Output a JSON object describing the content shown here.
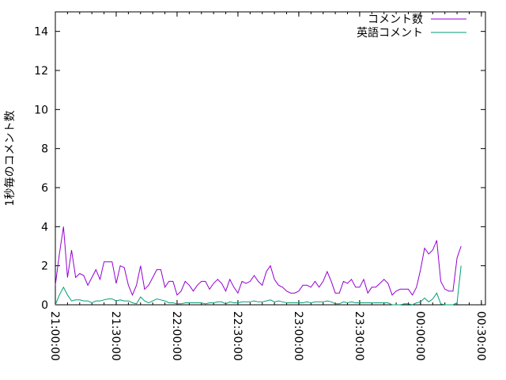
{
  "chart_data": {
    "type": "line",
    "title": "",
    "xlabel": "",
    "ylabel": "1秒毎のコメント数",
    "ylim": [
      0,
      15
    ],
    "yticks": [
      "0",
      "2",
      "4",
      "6",
      "8",
      "10",
      "12",
      "14"
    ],
    "xlim": [
      "21:00",
      "00:32"
    ],
    "xticks": [
      "21:00:00",
      "21:30:00",
      "22:00:00",
      "22:30:00",
      "23:00:00",
      "23:30:00",
      "00:00:00",
      "00:30:00"
    ],
    "grid": false,
    "legend_position": "top-right",
    "x": [
      "21:00",
      "21:02",
      "21:04",
      "21:06",
      "21:08",
      "21:10",
      "21:12",
      "21:14",
      "21:16",
      "21:18",
      "21:20",
      "21:22",
      "21:24",
      "21:26",
      "21:28",
      "21:30",
      "21:32",
      "21:34",
      "21:36",
      "21:38",
      "21:40",
      "21:42",
      "21:44",
      "21:46",
      "21:48",
      "21:50",
      "21:52",
      "21:54",
      "21:56",
      "21:58",
      "22:00",
      "22:02",
      "22:04",
      "22:06",
      "22:08",
      "22:10",
      "22:12",
      "22:14",
      "22:16",
      "22:18",
      "22:20",
      "22:22",
      "22:24",
      "22:26",
      "22:28",
      "22:30",
      "22:32",
      "22:34",
      "22:36",
      "22:38",
      "22:40",
      "22:42",
      "22:44",
      "22:46",
      "22:48",
      "22:50",
      "22:52",
      "22:54",
      "22:56",
      "22:58",
      "23:00",
      "23:02",
      "23:04",
      "23:06",
      "23:08",
      "23:10",
      "23:12",
      "23:14",
      "23:16",
      "23:18",
      "23:20",
      "23:22",
      "23:24",
      "23:26",
      "23:28",
      "23:30",
      "23:32",
      "23:34",
      "23:36",
      "23:38",
      "23:40",
      "23:42",
      "23:44",
      "23:46",
      "23:48",
      "23:50",
      "23:52",
      "23:54",
      "23:56",
      "23:58",
      "00:00",
      "00:02",
      "00:04",
      "00:06",
      "00:08",
      "00:10",
      "00:12",
      "00:14",
      "00:16",
      "00:18",
      "00:20"
    ],
    "series": [
      {
        "name": "コメント数",
        "color": "#9400d3",
        "values": [
          1.0,
          2.6,
          4.0,
          1.4,
          2.8,
          1.4,
          1.6,
          1.5,
          1.0,
          1.4,
          1.8,
          1.3,
          2.2,
          2.2,
          2.2,
          1.1,
          2.0,
          1.9,
          1.0,
          0.5,
          1.0,
          2.0,
          0.8,
          1.0,
          1.4,
          1.8,
          1.8,
          0.9,
          1.2,
          1.2,
          0.5,
          0.7,
          1.2,
          1.0,
          0.7,
          1.0,
          1.2,
          1.2,
          0.8,
          1.1,
          1.3,
          1.1,
          0.7,
          1.3,
          0.9,
          0.6,
          1.2,
          1.1,
          1.2,
          1.5,
          1.2,
          1.0,
          1.7,
          2.0,
          1.3,
          1.0,
          0.9,
          0.7,
          0.6,
          0.6,
          0.7,
          1.0,
          1.0,
          0.9,
          1.2,
          0.9,
          1.2,
          1.7,
          1.2,
          0.6,
          0.6,
          1.2,
          1.1,
          1.3,
          0.9,
          0.9,
          1.3,
          0.6,
          0.9,
          0.9,
          1.1,
          1.3,
          1.1,
          0.5,
          0.7,
          0.8,
          0.8,
          0.8,
          0.5,
          0.9,
          1.8,
          2.9,
          2.6,
          2.8,
          3.3,
          1.2,
          0.8,
          0.7,
          0.7,
          2.4,
          3.0
        ]
      },
      {
        "name": "英語コメント",
        "color": "#009e73",
        "values": [
          0.0,
          0.5,
          0.9,
          0.5,
          0.2,
          0.25,
          0.25,
          0.2,
          0.2,
          0.1,
          0.2,
          0.2,
          0.25,
          0.3,
          0.3,
          0.2,
          0.25,
          0.2,
          0.2,
          0.1,
          0.05,
          0.4,
          0.2,
          0.1,
          0.2,
          0.3,
          0.25,
          0.2,
          0.1,
          0.1,
          0.05,
          0.05,
          0.1,
          0.1,
          0.1,
          0.1,
          0.1,
          0.05,
          0.1,
          0.1,
          0.15,
          0.15,
          0.05,
          0.15,
          0.1,
          0.1,
          0.15,
          0.15,
          0.15,
          0.2,
          0.15,
          0.15,
          0.2,
          0.25,
          0.15,
          0.2,
          0.15,
          0.1,
          0.1,
          0.1,
          0.1,
          0.1,
          0.15,
          0.1,
          0.15,
          0.15,
          0.15,
          0.2,
          0.15,
          0.05,
          0.05,
          0.15,
          0.1,
          0.15,
          0.1,
          0.1,
          0.1,
          0.1,
          0.1,
          0.1,
          0.1,
          0.1,
          0.1,
          0.0,
          0.0,
          0.0,
          0.05,
          0.05,
          0.0,
          0.1,
          0.15,
          0.35,
          0.15,
          0.3,
          0.6,
          0.05,
          0.0,
          0.0,
          0.0,
          0.1,
          2.0
        ]
      }
    ]
  }
}
